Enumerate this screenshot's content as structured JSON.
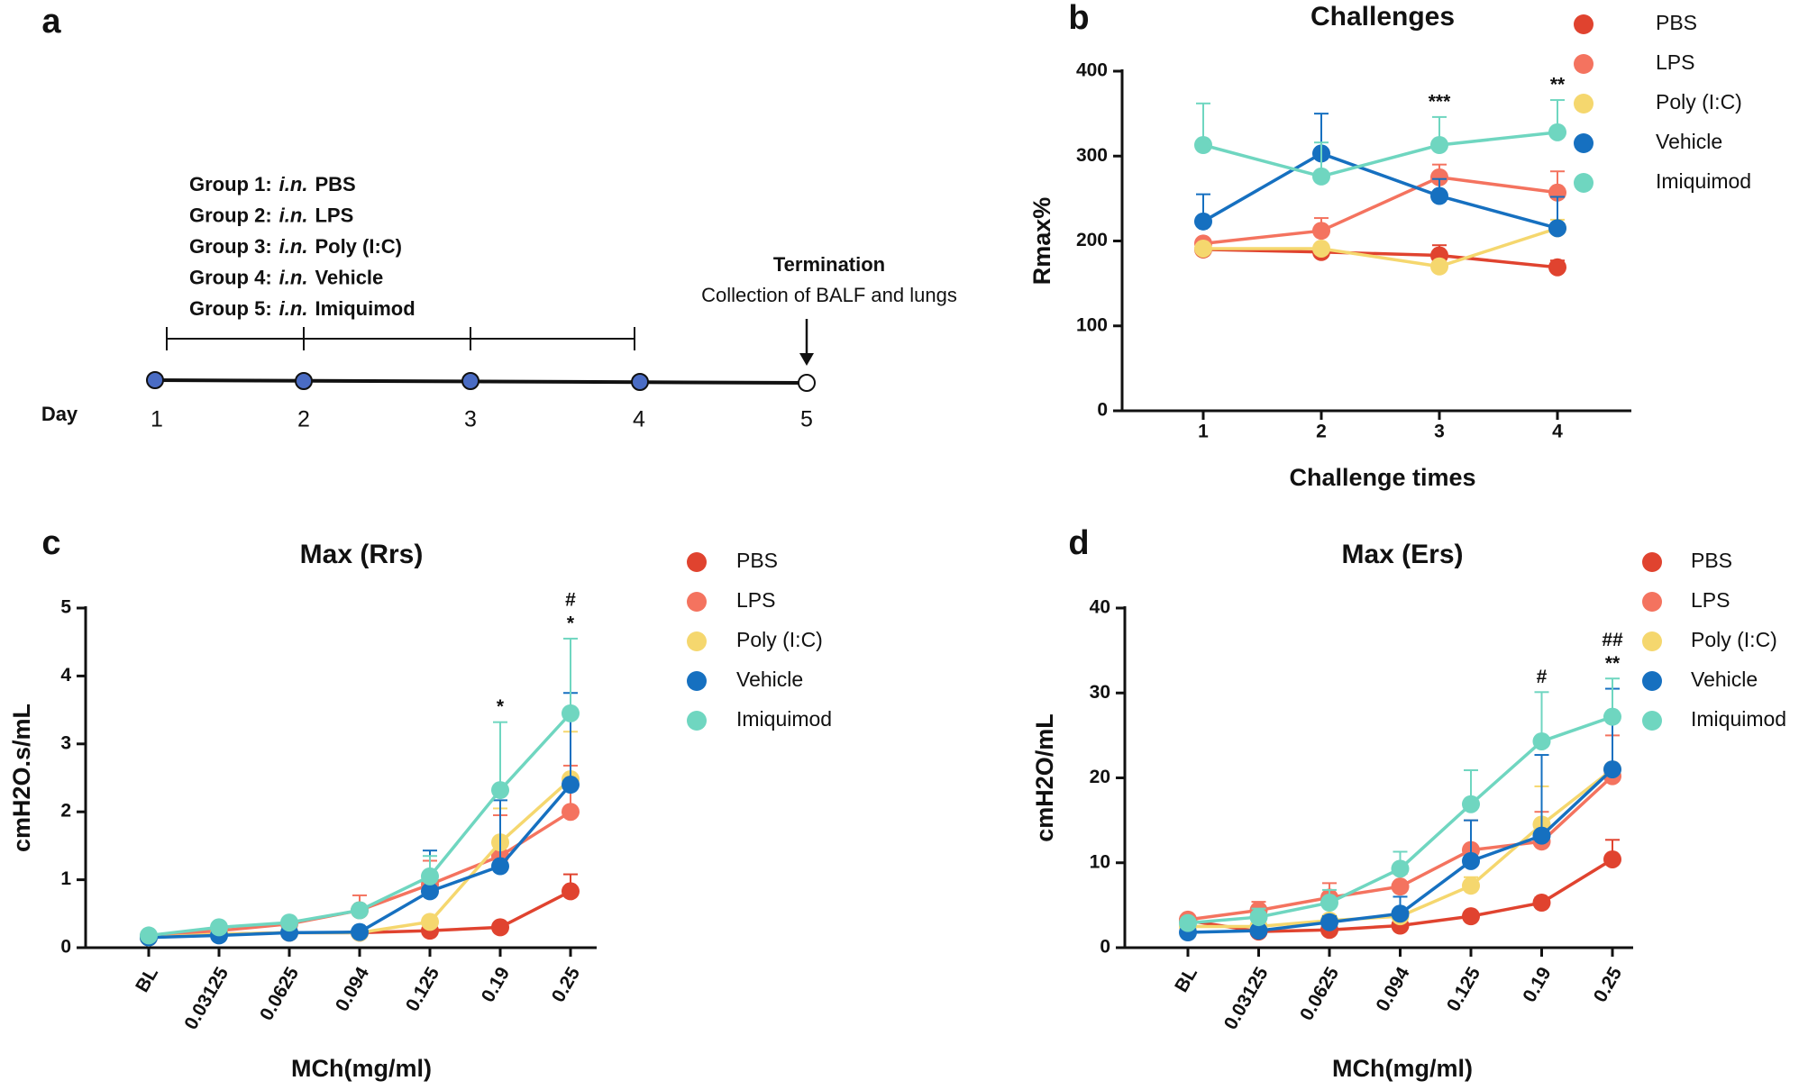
{
  "timeline": {
    "label": "a",
    "groups": [
      {
        "group": "Group 1:",
        "route": "i.n.",
        "treatment": "PBS"
      },
      {
        "group": "Group 2:",
        "route": "i.n.",
        "treatment": "LPS"
      },
      {
        "group": "Group 3:",
        "route": "i.n.",
        "treatment": "Poly (I:C)"
      },
      {
        "group": "Group 4:",
        "route": "i.n.",
        "treatment": "Vehicle"
      },
      {
        "group": "Group 5:",
        "route": "i.n.",
        "treatment": "Imiquimod"
      }
    ],
    "termination": "Termination",
    "termination_note": "Collection of BALF and lungs",
    "day_label": "Day",
    "days": [
      "1",
      "2",
      "3",
      "4",
      "5"
    ]
  },
  "chart_data": [
    {
      "type": "line",
      "label": "b",
      "title": "Challenges",
      "x_label": "Challenge times",
      "y_label": "Rmax%",
      "categories": [
        "1",
        "2",
        "3",
        "4"
      ],
      "ylim": [
        0,
        400
      ],
      "yticks": [
        0,
        100,
        200,
        300,
        400
      ],
      "legend": "right",
      "series": [
        {
          "name": "PBS",
          "color": "#e0432f",
          "values": [
            190,
            187,
            183,
            169
          ],
          "errors": [
            5,
            5,
            12,
            8
          ]
        },
        {
          "name": "LPS",
          "color": "#f4735f",
          "values": [
            197,
            212,
            275,
            257
          ],
          "errors": [
            5,
            15,
            15,
            25
          ]
        },
        {
          "name": "Poly (I:C)",
          "color": "#f5d76e",
          "values": [
            191,
            191,
            170,
            215
          ],
          "errors": [
            5,
            5,
            5,
            10
          ]
        },
        {
          "name": "Vehicle",
          "color": "#1670c0",
          "values": [
            223,
            303,
            253,
            215
          ],
          "errors": [
            32,
            47,
            20,
            37
          ]
        },
        {
          "name": "Imiquimod",
          "color": "#6fd6c0",
          "values": [
            313,
            276,
            313,
            328
          ],
          "errors": [
            49,
            40,
            33,
            38
          ]
        }
      ],
      "annotations": [
        {
          "x": "3",
          "text": "***"
        },
        {
          "x": "4",
          "text": "**"
        }
      ]
    },
    {
      "type": "line",
      "label": "c",
      "title": "Max (Rrs)",
      "x_label": "MCh(mg/ml)",
      "y_label": "cmH2O.s/mL",
      "categories": [
        "BL",
        "0.03125",
        "0.0625",
        "0.094",
        "0.125",
        "0.19",
        "0.25"
      ],
      "ylim": [
        0,
        5
      ],
      "yticks": [
        0,
        1,
        2,
        3,
        4,
        5
      ],
      "legend": "right",
      "series": [
        {
          "name": "PBS",
          "color": "#e0432f",
          "values": [
            0.15,
            0.2,
            0.22,
            0.22,
            0.25,
            0.3,
            0.83
          ],
          "errors": [
            0.02,
            0.02,
            0.02,
            0.02,
            0.03,
            0.03,
            0.25
          ]
        },
        {
          "name": "LPS",
          "color": "#f4735f",
          "values": [
            0.17,
            0.25,
            0.35,
            0.55,
            0.93,
            1.35,
            2.0
          ],
          "errors": [
            0.02,
            0.03,
            0.03,
            0.22,
            0.35,
            0.6,
            0.68
          ]
        },
        {
          "name": "Poly (I:C)",
          "color": "#f5d76e",
          "values": [
            0.15,
            0.2,
            0.22,
            0.22,
            0.38,
            1.55,
            2.48
          ],
          "errors": [
            0.02,
            0.02,
            0.02,
            0.02,
            0.05,
            0.5,
            0.7
          ]
        },
        {
          "name": "Vehicle",
          "color": "#1670c0",
          "values": [
            0.15,
            0.18,
            0.22,
            0.23,
            0.83,
            1.2,
            2.4
          ],
          "errors": [
            0.02,
            0.02,
            0.02,
            0.02,
            0.6,
            0.97,
            1.35
          ]
        },
        {
          "name": "Imiquimod",
          "color": "#6fd6c0",
          "values": [
            0.18,
            0.3,
            0.37,
            0.55,
            1.05,
            2.32,
            3.45
          ],
          "errors": [
            0.03,
            0.05,
            0.05,
            0.05,
            0.3,
            1.0,
            1.1
          ]
        }
      ],
      "annotations": [
        {
          "x": "0.19",
          "text": "*"
        },
        {
          "x": "0.25",
          "text": "*"
        },
        {
          "x": "0.25",
          "text": "#"
        }
      ]
    },
    {
      "type": "line",
      "label": "d",
      "title": "Max (Ers)",
      "x_label": "MCh(mg/ml)",
      "y_label": "cmH2O/mL",
      "categories": [
        "BL",
        "0.03125",
        "0.0625",
        "0.094",
        "0.125",
        "0.19",
        "0.25"
      ],
      "ylim": [
        0,
        40
      ],
      "yticks": [
        0,
        10,
        20,
        30,
        40
      ],
      "legend": "right",
      "series": [
        {
          "name": "PBS",
          "color": "#e0432f",
          "values": [
            3.2,
            1.9,
            2.1,
            2.6,
            3.7,
            5.3,
            10.4
          ],
          "errors": [
            0.3,
            0.3,
            0.3,
            0.3,
            0.3,
            0.6,
            2.3
          ]
        },
        {
          "name": "LPS",
          "color": "#f4735f",
          "values": [
            3.3,
            4.4,
            5.9,
            7.2,
            11.5,
            12.5,
            20.2
          ],
          "errors": [
            0.5,
            1,
            1.7,
            1.5,
            3.5,
            3.5,
            4.8
          ]
        },
        {
          "name": "Poly (I:C)",
          "color": "#f5d76e",
          "values": [
            2.5,
            2.5,
            3.2,
            3.7,
            7.3,
            14.5,
            21.0
          ],
          "errors": [
            0.3,
            0.3,
            0.5,
            0.5,
            1,
            4.5,
            6.5
          ]
        },
        {
          "name": "Vehicle",
          "color": "#1670c0",
          "values": [
            1.8,
            2.0,
            3.0,
            4.0,
            10.2,
            13.2,
            21.0
          ],
          "errors": [
            0.3,
            0.3,
            0.7,
            2,
            4.8,
            9.5,
            9.5
          ]
        },
        {
          "name": "Imiquimod",
          "color": "#6fd6c0",
          "values": [
            2.9,
            3.6,
            5.3,
            9.3,
            16.9,
            24.3,
            27.2
          ],
          "errors": [
            0.5,
            1,
            1.5,
            2,
            4,
            5.8,
            4.5
          ]
        }
      ],
      "annotations": [
        {
          "x": "0.19",
          "text": "#"
        },
        {
          "x": "0.25",
          "text": "**"
        },
        {
          "x": "0.25",
          "text": "##"
        }
      ]
    }
  ]
}
